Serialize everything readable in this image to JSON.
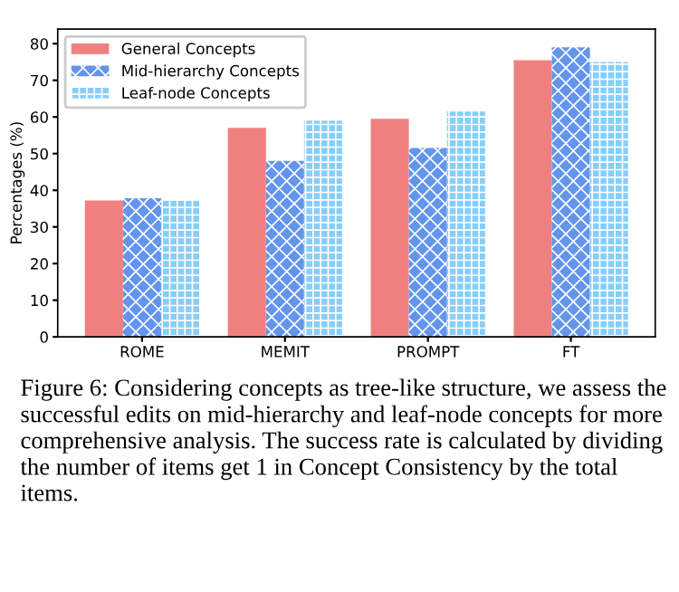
{
  "chart_data": {
    "type": "bar",
    "ylabel": "Percentages (%)",
    "categories": [
      "ROME",
      "MEMIT",
      "PROMPT",
      "FT"
    ],
    "series": [
      {
        "name": "General Concepts",
        "color": "#f08080",
        "values": [
          37.2,
          57,
          59.5,
          75.5
        ]
      },
      {
        "name": "Mid-hierarchy Concepts",
        "color": "#6495ed",
        "values": [
          37.8,
          48,
          51.5,
          79
        ]
      },
      {
        "name": "Leaf-node Concepts",
        "color": "#87cefa",
        "values": [
          37.2,
          59,
          61.5,
          75
        ]
      }
    ],
    "ylim": [
      0,
      84
    ],
    "yticks": [
      0,
      10,
      20,
      30,
      40,
      50,
      60,
      70,
      80
    ],
    "grid": false,
    "legend": "top left",
    "annotations": [
      "Figure 6: Considering concepts as tree-like structure, we assess the successful edits on mid-hierarchy and leaf-node concepts for more comprehensive analysis. The success rate is calculated by dividing the number of items get 1 in Concept Consistency by the total items."
    ]
  }
}
